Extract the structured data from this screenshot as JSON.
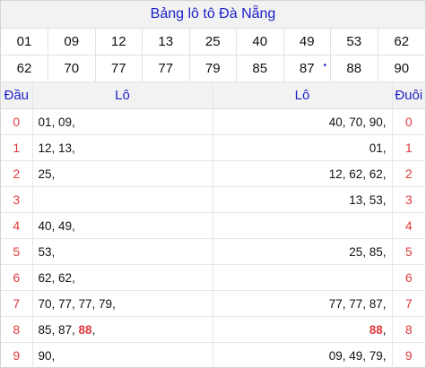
{
  "title": "Bảng lô tô Đà Nẵng",
  "numbers_row1": [
    "01",
    "09",
    "12",
    "13",
    "25",
    "40",
    "49",
    "53",
    "62"
  ],
  "numbers_row2": [
    "62",
    "70",
    "77",
    "77",
    "79",
    "85",
    "87",
    "88",
    "90"
  ],
  "header": {
    "dau": "Đầu",
    "lo_left": "Lô",
    "lo_right": "Lô",
    "duoi": "Đuôi"
  },
  "rows": [
    {
      "dau": "0",
      "left": [
        "01, 09,"
      ],
      "right": [
        "40, 70, 90,"
      ],
      "duoi": "0"
    },
    {
      "dau": "1",
      "left": [
        "12, 13,"
      ],
      "right": [
        "01,"
      ],
      "duoi": "1"
    },
    {
      "dau": "2",
      "left": [
        "25,"
      ],
      "right": [
        "12, 62, 62,"
      ],
      "duoi": "2"
    },
    {
      "dau": "3",
      "left": [
        ""
      ],
      "right": [
        "13, 53,"
      ],
      "duoi": "3"
    },
    {
      "dau": "4",
      "left": [
        "40, 49,"
      ],
      "right": [
        ""
      ],
      "duoi": "4"
    },
    {
      "dau": "5",
      "left": [
        "53,"
      ],
      "right": [
        "25, 85,"
      ],
      "duoi": "5"
    },
    {
      "dau": "6",
      "left": [
        "62, 62,"
      ],
      "right": [
        ""
      ],
      "duoi": "6"
    },
    {
      "dau": "7",
      "left": [
        "70, 77, 77, 79,"
      ],
      "right": [
        "77, 77, 87,"
      ],
      "duoi": "7"
    },
    {
      "dau": "8",
      "left_pre": "85, 87, ",
      "left_hl": "88",
      "left_post": ",",
      "right_hl": "88",
      "right_post": ",",
      "duoi": "8"
    },
    {
      "dau": "9",
      "left": [
        "90,"
      ],
      "right": [
        "09, 49, 79,"
      ],
      "duoi": "9"
    }
  ],
  "colors": {
    "blue": "#1e22c8",
    "red": "#e0393f",
    "header_bg": "#f2f2f2"
  }
}
